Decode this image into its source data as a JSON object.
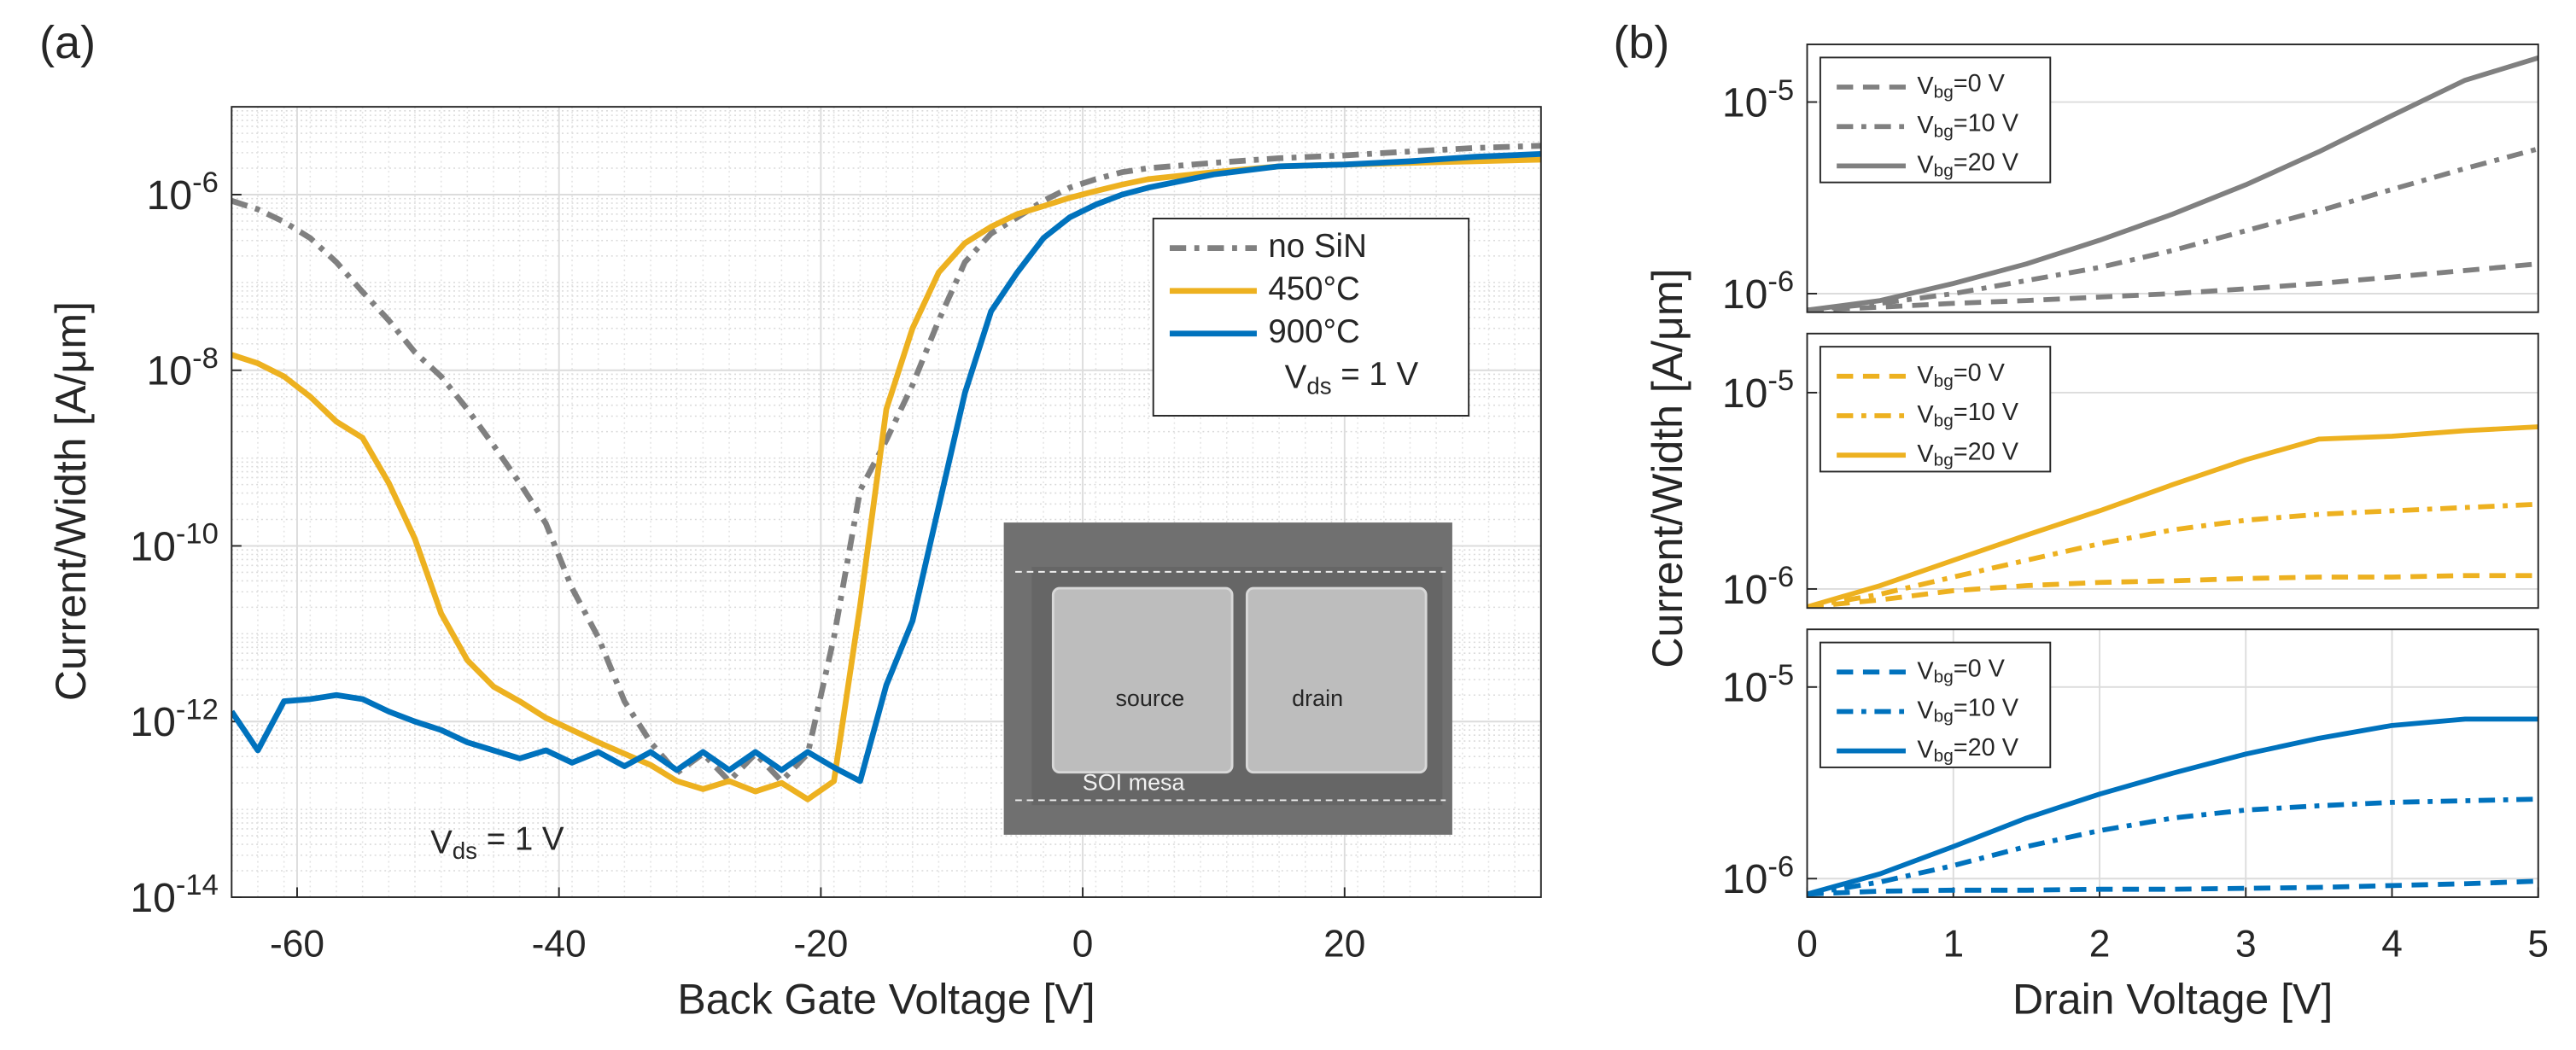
{
  "chart_data": [
    {
      "type": "line",
      "panel_label": "(a)",
      "xlabel": "Back Gate Voltage [V]",
      "ylabel": "Current/Width [A/μm]",
      "ylog": true,
      "grid": true,
      "minor_grid": true,
      "legend": "northeast",
      "xlim": [
        -65,
        35
      ],
      "xticks": [
        -60,
        -40,
        -20,
        0,
        20
      ],
      "ylim": [
        1e-14,
        1e-05
      ],
      "yticks": [
        {
          "value": 1e-14,
          "label": "10-14"
        },
        {
          "value": 1e-12,
          "label": "10-12"
        },
        {
          "value": 1e-10,
          "label": "10-10"
        },
        {
          "value": 1e-08,
          "label": "10-8"
        },
        {
          "value": 1e-06,
          "label": "10-6"
        }
      ],
      "x": [
        -65,
        -63,
        -61,
        -59,
        -57,
        -55,
        -53,
        -51,
        -49,
        -47,
        -45,
        -43,
        -41,
        -39,
        -37,
        -35,
        -33,
        -31,
        -29,
        -27,
        -25,
        -23,
        -21,
        -19,
        -17,
        -15,
        -13,
        -11,
        -9,
        -7,
        -5,
        -3,
        -1,
        1,
        3,
        5,
        10,
        15,
        20,
        25,
        30,
        35
      ],
      "series": [
        {
          "name": "no SiN",
          "color": "#808080",
          "dash": "dashdot",
          "values": [
            8.5e-07,
            6.8e-07,
            4.9e-07,
            3.2e-07,
            1.7e-07,
            7.8e-08,
            3.7e-08,
            1.6e-08,
            8.5e-09,
            3.6e-09,
            1.4e-09,
            5.2e-10,
            1.8e-10,
            3.3e-11,
            9.1e-12,
            1.7e-12,
            5.8e-13,
            2.6e-13,
            4.3e-13,
            2.1e-13,
            4.3e-13,
            2.1e-13,
            4.3e-13,
            9.1e-12,
            4.3e-10,
            1.6e-09,
            6.8e-09,
            3.7e-08,
            1.7e-07,
            3.6e-07,
            5.5e-07,
            8.5e-07,
            1.2e-06,
            1.5e-06,
            1.8e-06,
            2e-06,
            2.3e-06,
            2.6e-06,
            2.8e-06,
            3.1e-06,
            3.4e-06,
            3.6e-06
          ]
        },
        {
          "name": "450°C",
          "color": "#EDB120",
          "dash": "solid",
          "values": [
            1.5e-08,
            1.2e-08,
            8.5e-09,
            5e-09,
            2.6e-09,
            1.7e-09,
            5.2e-10,
            1.2e-10,
            1.7e-11,
            5e-12,
            2.5e-12,
            1.7e-12,
            1.1e-12,
            8e-13,
            5.8e-13,
            4.3e-13,
            3.2e-13,
            2.1e-13,
            1.7e-13,
            2.1e-13,
            1.6e-13,
            2e-13,
            1.3e-13,
            2.1e-13,
            2.1e-11,
            3.6e-09,
            3e-08,
            1.3e-07,
            2.8e-07,
            4.3e-07,
            6e-07,
            7.4e-07,
            9.2e-07,
            1.1e-06,
            1.3e-06,
            1.5e-06,
            1.8e-06,
            2.1e-06,
            2.2e-06,
            2.3e-06,
            2.4e-06,
            2.5e-06
          ]
        },
        {
          "name": "900°C",
          "color": "#0072BD",
          "dash": "solid",
          "values": [
            1.3e-12,
            4.7e-13,
            1.7e-12,
            1.8e-12,
            2e-12,
            1.8e-12,
            1.3e-12,
            1e-12,
            8e-13,
            5.8e-13,
            4.7e-13,
            3.8e-13,
            4.7e-13,
            3.4e-13,
            4.5e-13,
            3.1e-13,
            4.5e-13,
            2.8e-13,
            4.5e-13,
            2.8e-13,
            4.5e-13,
            2.8e-13,
            4.5e-13,
            3e-13,
            2.1e-13,
            2.6e-12,
            1.4e-11,
            2.8e-10,
            5.5e-09,
            4.7e-08,
            1.3e-07,
            3.2e-07,
            5.5e-07,
            7.7e-07,
            1e-06,
            1.2e-06,
            1.7e-06,
            2.1e-06,
            2.2e-06,
            2.4e-06,
            2.7e-06,
            2.9e-06
          ]
        }
      ],
      "annotations": [
        "Vds = 1 V",
        "Vds = 1 V"
      ],
      "inset_labels": [
        "source",
        "drain",
        "SOI mesa"
      ]
    },
    {
      "type": "line",
      "panel_label": "(b)",
      "ylabel": "Current/Width [A/μm]",
      "ylog": true,
      "grid": true,
      "legend": "northwest",
      "xlim": [
        0,
        5
      ],
      "ylim": [
        8e-07,
        2e-05
      ],
      "yticks": [
        {
          "value": 1e-06,
          "label": "10-6"
        },
        {
          "value": 1e-05,
          "label": "10-5"
        }
      ],
      "x": [
        0,
        0.5,
        1,
        1.5,
        2,
        2.5,
        3,
        3.5,
        4,
        4.5,
        5
      ],
      "series": [
        {
          "name": "Vbg=0 V",
          "color": "#808080",
          "dash": "dash",
          "values": [
            8.2e-07,
            8.5e-07,
            8.9e-07,
            9.2e-07,
            9.6e-07,
            1e-06,
            1.06e-06,
            1.13e-06,
            1.22e-06,
            1.32e-06,
            1.43e-06
          ]
        },
        {
          "name": "Vbg=10 V",
          "color": "#808080",
          "dash": "dashdot",
          "values": [
            8.2e-07,
            8.9e-07,
            1e-06,
            1.17e-06,
            1.37e-06,
            1.68e-06,
            2.13e-06,
            2.7e-06,
            3.5e-06,
            4.5e-06,
            5.7e-06
          ]
        },
        {
          "name": "Vbg=20 V",
          "color": "#808080",
          "dash": "solid",
          "values": [
            8.2e-07,
            9.2e-07,
            1.13e-06,
            1.43e-06,
            1.9e-06,
            2.6e-06,
            3.7e-06,
            5.5e-06,
            8.5e-06,
            1.3e-05,
            1.7e-05
          ]
        }
      ]
    },
    {
      "type": "line",
      "ylog": true,
      "grid": true,
      "legend": "northwest",
      "xlim": [
        0,
        5
      ],
      "ylim": [
        8e-07,
        2e-05
      ],
      "yticks": [
        {
          "value": 1e-06,
          "label": "10-6"
        },
        {
          "value": 1e-05,
          "label": "10-5"
        }
      ],
      "x": [
        0,
        0.5,
        1,
        1.5,
        2,
        2.5,
        3,
        3.5,
        4,
        4.5,
        5
      ],
      "series": [
        {
          "name": "Vbg=0 V",
          "color": "#EDB120",
          "dash": "dash",
          "values": [
            8.1e-07,
            8.8e-07,
            9.8e-07,
            1.04e-06,
            1.08e-06,
            1.1e-06,
            1.13e-06,
            1.15e-06,
            1.15e-06,
            1.17e-06,
            1.17e-06
          ]
        },
        {
          "name": "Vbg=10 V",
          "color": "#EDB120",
          "dash": "dashdot",
          "values": [
            8.1e-07,
            9.4e-07,
            1.15e-06,
            1.4e-06,
            1.7e-06,
            2e-06,
            2.24e-06,
            2.4e-06,
            2.5e-06,
            2.6e-06,
            2.7e-06
          ]
        },
        {
          "name": "Vbg=20 V",
          "color": "#EDB120",
          "dash": "solid",
          "values": [
            8.1e-07,
            1.04e-06,
            1.4e-06,
            1.88e-06,
            2.5e-06,
            3.4e-06,
            4.55e-06,
            5.8e-06,
            6e-06,
            6.4e-06,
            6.7e-06
          ]
        }
      ]
    },
    {
      "type": "line",
      "xlabel": "Drain Voltage [V]",
      "ylog": true,
      "grid": true,
      "legend": "northwest",
      "xlim": [
        0,
        5
      ],
      "xticks": [
        0,
        1,
        2,
        3,
        4,
        5
      ],
      "ylim": [
        8e-07,
        2e-05
      ],
      "yticks": [
        {
          "value": 1e-06,
          "label": "10-6"
        },
        {
          "value": 1e-05,
          "label": "10-5"
        }
      ],
      "x": [
        0,
        0.5,
        1,
        1.5,
        2,
        2.5,
        3,
        3.5,
        4,
        4.5,
        5
      ],
      "series": [
        {
          "name": "Vbg=0 V",
          "color": "#0072BD",
          "dash": "dash",
          "values": [
            8.3e-07,
            8.6e-07,
            8.7e-07,
            8.7e-07,
            8.8e-07,
            8.8e-07,
            8.9e-07,
            9e-07,
            9.2e-07,
            9.4e-07,
            9.7e-07
          ]
        },
        {
          "name": "Vbg=10 V",
          "color": "#0072BD",
          "dash": "dashdot",
          "values": [
            8.3e-07,
            9.6e-07,
            1.17e-06,
            1.47e-06,
            1.78e-06,
            2.07e-06,
            2.28e-06,
            2.4e-06,
            2.5e-06,
            2.55e-06,
            2.6e-06
          ]
        },
        {
          "name": "Vbg=20 V",
          "color": "#0072BD",
          "dash": "solid",
          "values": [
            8.3e-07,
            1.06e-06,
            1.47e-06,
            2.07e-06,
            2.76e-06,
            3.55e-06,
            4.47e-06,
            5.4e-06,
            6.3e-06,
            6.8e-06,
            6.8e-06
          ]
        }
      ]
    }
  ]
}
